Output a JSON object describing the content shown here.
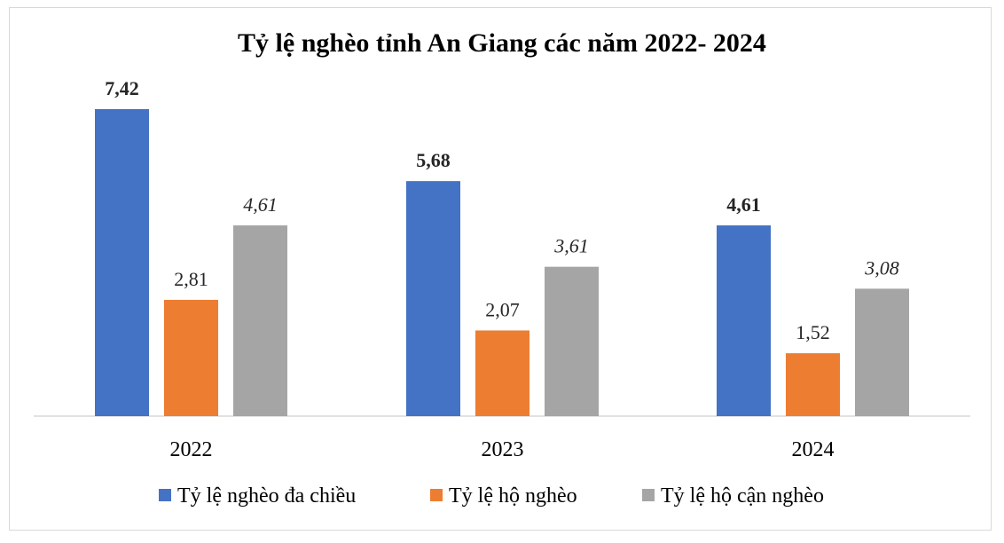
{
  "chart_data": {
    "type": "bar",
    "title": "Tỷ lệ nghèo tỉnh An Giang các năm 2022- 2024",
    "xlabel": "",
    "ylabel": "",
    "categories": [
      "2022",
      "2023",
      "2024"
    ],
    "series": [
      {
        "name": "Tỷ lệ nghèo đa chiều",
        "values": [
          7.42,
          5.68,
          4.61
        ],
        "labels": [
          "7,42",
          "5,68",
          "4,61"
        ],
        "color": "#4472C4",
        "label_style": "bold"
      },
      {
        "name": "Tỷ lệ hộ nghèo",
        "values": [
          2.81,
          2.07,
          1.52
        ],
        "labels": [
          "2,81",
          "2,07",
          "1,52"
        ],
        "color": "#ED7D31",
        "label_style": "normal"
      },
      {
        "name": "Tỷ lệ hộ cận nghèo",
        "values": [
          4.61,
          3.61,
          3.08
        ],
        "labels": [
          "4,61",
          "3,61",
          "3,08"
        ],
        "color": "#A5A5A5",
        "label_style": "italic"
      }
    ],
    "ylim": [
      0,
      8
    ],
    "grid": false,
    "legend_position": "bottom"
  }
}
